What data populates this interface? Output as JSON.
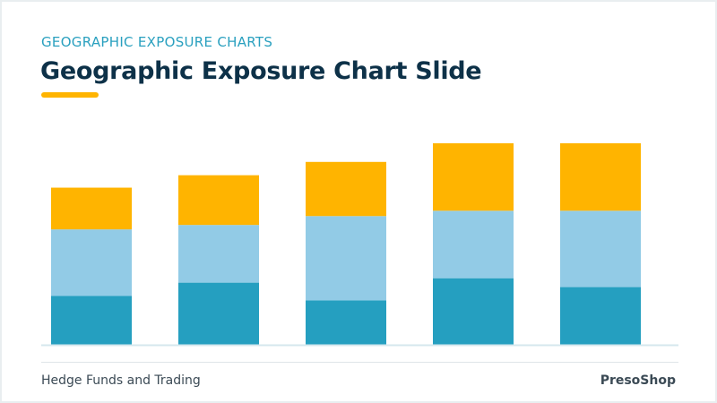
{
  "header": {
    "eyebrow": "GEOGRAPHIC EXPOSURE CHARTS",
    "title": "Geographic Exposure Chart Slide"
  },
  "footer": {
    "left_text": "Hedge Funds and Trading",
    "brand": "PresoShop"
  },
  "colors": {
    "accent": "#ffb400",
    "bottom_segment": "#259fc0",
    "middle_segment": "#92cbe6",
    "top_segment": "#ffb400",
    "baseline": "#d5e7ee"
  },
  "chart_data": {
    "type": "bar",
    "stacked": true,
    "categories": [
      "",
      "",
      "",
      "",
      ""
    ],
    "series": [
      {
        "values": [
          55,
          70,
          50,
          75,
          65
        ],
        "color": "#259fc0"
      },
      {
        "values": [
          75,
          65,
          95,
          76,
          86
        ],
        "color": "#92cbe6"
      },
      {
        "values": [
          47,
          56,
          61,
          76,
          76
        ],
        "color": "#ffb400"
      }
    ],
    "ylim": [
      0,
      230
    ],
    "grid": false,
    "legend": "none"
  }
}
